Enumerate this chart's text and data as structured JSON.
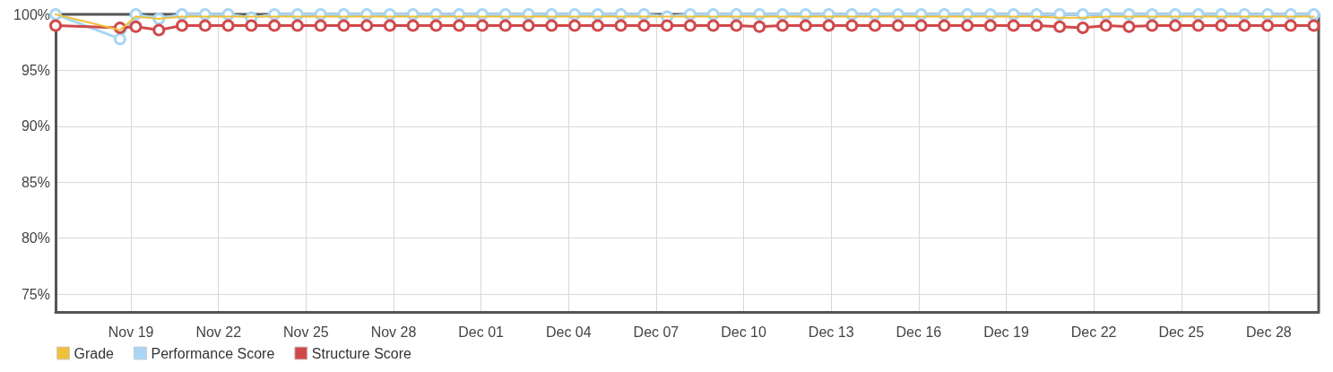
{
  "chart_data": {
    "type": "line",
    "x": [
      "--11-16T10:00",
      "--11-18T15:00",
      "--11-19T04:00",
      "--11-19T23:00",
      "--11-20T18:00",
      "--11-21T13:00",
      "--11-22T08:00",
      "--11-23T03:00",
      "--11-23T22:00",
      "--11-24T17:00",
      "--11-25T12:00",
      "--11-26T07:00",
      "--11-27T02:00",
      "--11-27T21:00",
      "--11-28T16:00",
      "--11-29T11:00",
      "--11-30T06:00",
      "--12-01T01:00",
      "--12-01T20:00",
      "--12-02T15:00",
      "--12-03T10:00",
      "--12-04T05:00",
      "--12-05T00:00",
      "--12-05T19:00",
      "--12-06T14:00",
      "--12-07T09:00",
      "--12-08T04:00",
      "--12-08T23:00",
      "--12-09T18:00",
      "--12-10T13:00",
      "--12-11T08:00",
      "--12-12T03:00",
      "--12-12T22:00",
      "--12-13T17:00",
      "--12-14T12:00",
      "--12-15T07:00",
      "--12-16T02:00",
      "--12-16T21:00",
      "--12-17T16:00",
      "--12-18T11:00",
      "--12-19T06:00",
      "--12-20T01:00",
      "--12-20T20:00",
      "--12-21T15:00",
      "--12-22T10:00",
      "--12-23T05:00",
      "--12-24T00:00",
      "--12-24T19:00",
      "--12-25T14:00",
      "--12-26T09:00",
      "--12-27T04:00",
      "--12-27T23:00",
      "--12-28T18:00",
      "--12-29T13:00"
    ],
    "series": [
      {
        "name": "Grade",
        "color": "#efc13a",
        "marker": "none",
        "values": [
          100,
          98.6,
          99.8,
          99.6,
          99.8,
          99.8,
          99.8,
          99.8,
          99.8,
          99.8,
          99.8,
          99.8,
          99.8,
          99.8,
          99.8,
          99.8,
          99.8,
          99.8,
          99.8,
          99.8,
          99.8,
          99.8,
          99.8,
          99.8,
          99.8,
          99.8,
          99.8,
          99.8,
          99.8,
          99.8,
          99.8,
          99.8,
          99.8,
          99.8,
          99.8,
          99.8,
          99.8,
          99.8,
          99.8,
          99.8,
          99.8,
          99.8,
          99.7,
          99.7,
          99.8,
          99.8,
          99.8,
          99.8,
          99.8,
          99.8,
          99.8,
          99.8,
          99.8,
          99.8
        ]
      },
      {
        "name": "Performance Score",
        "color": "#a9d6f5",
        "values": [
          100,
          97.8,
          100,
          99.6,
          100,
          100,
          100,
          99.7,
          100,
          100,
          100,
          100,
          100,
          100,
          100,
          100,
          100,
          100,
          100,
          100,
          100,
          100,
          100,
          100,
          100,
          99.8,
          100,
          100,
          100,
          100,
          100,
          100,
          100,
          100,
          100,
          100,
          100,
          100,
          100,
          100,
          100,
          100,
          100,
          100,
          100,
          100,
          100,
          100,
          100,
          100,
          100,
          100,
          100,
          100
        ]
      },
      {
        "name": "Structure Score",
        "color": "#d0494a",
        "values": [
          99.0,
          98.8,
          98.9,
          98.6,
          99.0,
          99.0,
          99.0,
          99.0,
          99.0,
          99.0,
          99.0,
          99.0,
          99.0,
          99.0,
          99.0,
          99.0,
          99.0,
          99.0,
          99.0,
          99.0,
          99.0,
          99.0,
          99.0,
          99.0,
          99.0,
          99.0,
          99.0,
          99.0,
          99.0,
          98.9,
          99.0,
          99.0,
          99.0,
          99.0,
          99.0,
          99.0,
          99.0,
          99.0,
          99.0,
          99.0,
          99.0,
          99.0,
          98.9,
          98.8,
          99.0,
          98.9,
          99.0,
          99.0,
          99.0,
          99.0,
          99.0,
          99.0,
          99.0,
          99.0
        ]
      }
    ],
    "xlim": [
      "--11-16T10:00",
      "--12-29T17:00"
    ],
    "xticks": [
      {
        "value": "--11-19",
        "label": "Nov 19"
      },
      {
        "value": "--11-22",
        "label": "Nov 22"
      },
      {
        "value": "--11-25",
        "label": "Nov 25"
      },
      {
        "value": "--11-28",
        "label": "Nov 28"
      },
      {
        "value": "--12-01",
        "label": "Dec 01"
      },
      {
        "value": "--12-04",
        "label": "Dec 04"
      },
      {
        "value": "--12-07",
        "label": "Dec 07"
      },
      {
        "value": "--12-10",
        "label": "Dec 10"
      },
      {
        "value": "--12-13",
        "label": "Dec 13"
      },
      {
        "value": "--12-16",
        "label": "Dec 16"
      },
      {
        "value": "--12-19",
        "label": "Dec 19"
      },
      {
        "value": "--12-22",
        "label": "Dec 22"
      },
      {
        "value": "--12-25",
        "label": "Dec 25"
      },
      {
        "value": "--12-28",
        "label": "Dec 28"
      }
    ],
    "ylim": [
      73.4,
      100
    ],
    "yticks": [
      {
        "value": 75,
        "label": "75%"
      },
      {
        "value": 80,
        "label": "80%"
      },
      {
        "value": 85,
        "label": "85%"
      },
      {
        "value": 90,
        "label": "90%"
      },
      {
        "value": 95,
        "label": "95%"
      },
      {
        "value": 100,
        "label": "100%"
      }
    ],
    "grid": true,
    "legend": "bottom left",
    "marker": "circle",
    "line_style": "solid"
  }
}
